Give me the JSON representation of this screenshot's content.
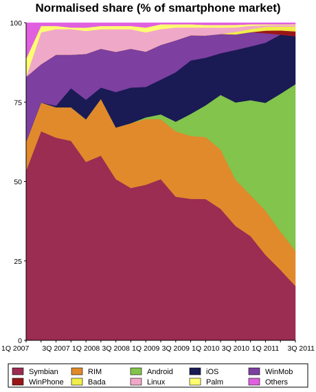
{
  "chart_data": {
    "type": "area",
    "stacked": true,
    "title": "Normalised share (% of smartphone market)",
    "xlabel": "",
    "ylabel": "",
    "ylim": [
      0,
      100
    ],
    "y_ticks": [
      "0",
      "25",
      "50",
      "75",
      "100"
    ],
    "x_tick_labels": [
      "1Q 2007",
      "3Q 2007",
      "1Q 2008",
      "3Q 2008",
      "1Q 2009",
      "3Q 2009",
      "1Q 2010",
      "3Q 2010",
      "1Q 2011",
      "3Q 2011"
    ],
    "grid": false,
    "legend_position": "bottom",
    "x": [
      "1Q 2007",
      "2Q 2007",
      "3Q 2007",
      "4Q 2007",
      "1Q 2008",
      "2Q 2008",
      "3Q 2008",
      "4Q 2008",
      "1Q 2009",
      "2Q 2009",
      "3Q 2009",
      "4Q 2009",
      "1Q 2010",
      "2Q 2010",
      "3Q 2010",
      "4Q 2010",
      "1Q 2011",
      "2Q 2011",
      "3Q 2011"
    ],
    "series": [
      {
        "name": "Symbian",
        "color": "#9b2c52",
        "values": [
          47,
          65.5,
          63.5,
          62.5,
          54.5,
          57,
          50,
          47,
          48.5,
          51,
          45,
          45,
          44.5,
          41,
          37,
          33,
          27,
          22,
          17
        ]
      },
      {
        "name": "RIM",
        "color": "#e08a2c",
        "values": [
          8,
          9,
          9.5,
          10.5,
          13,
          17.5,
          16,
          20,
          20.5,
          19,
          20.5,
          20,
          19.5,
          18.5,
          15,
          13,
          14,
          12,
          11
        ]
      },
      {
        "name": "Android",
        "color": "#82c44c",
        "values": [
          0,
          0,
          0,
          0,
          0,
          0,
          0,
          0,
          0.5,
          1.5,
          3,
          7,
          10,
          17,
          25,
          30,
          34,
          43,
          52
        ]
      },
      {
        "name": "iOS",
        "color": "#1a1a55",
        "values": [
          0,
          0,
          0.5,
          6,
          6,
          3.5,
          11,
          11,
          9.5,
          11,
          15.5,
          17,
          15,
          13,
          17,
          17,
          19,
          18.5,
          15
        ]
      },
      {
        "name": "WinMob",
        "color": "#7d3fa0",
        "values": [
          18,
          12,
          16,
          10.5,
          14,
          12,
          12.5,
          12,
          11,
          11,
          10,
          8,
          7,
          6,
          5,
          4.5,
          3,
          0,
          0
        ]
      },
      {
        "name": "WinPhone",
        "color": "#9a1616",
        "values": [
          0,
          0,
          0,
          0,
          0,
          0,
          0,
          0,
          0,
          0,
          0,
          0,
          0,
          0,
          0,
          0,
          0.8,
          1.3,
          1.5
        ]
      },
      {
        "name": "Bada",
        "color": "#f0ee4a",
        "values": [
          0,
          0,
          0,
          0,
          0,
          0,
          0,
          0,
          0,
          0,
          0,
          0,
          0,
          0,
          0.8,
          1,
          1.2,
          1.2,
          1.5
        ]
      },
      {
        "name": "Linux",
        "color": "#f0a8c8",
        "values": [
          0,
          10,
          8,
          8,
          7,
          6,
          7,
          6,
          6,
          5,
          4,
          2.5,
          2.5,
          2,
          1.5,
          1,
          0.5,
          0.5,
          0.5
        ]
      },
      {
        "name": "Palm",
        "color": "#ffff70",
        "values": [
          5,
          2,
          1,
          0.5,
          1,
          1,
          1,
          1,
          1.5,
          1.5,
          1,
          1,
          0.8,
          0.8,
          0.8,
          0.5,
          0.3,
          0.2,
          0.2
        ]
      },
      {
        "name": "Others",
        "color": "#e060e0",
        "values": [
          10,
          1,
          1,
          1.5,
          1.5,
          1,
          1,
          1,
          1.5,
          0.5,
          0.5,
          0.5,
          0.7,
          0.7,
          0.7,
          0.5,
          0.5,
          0.5,
          0.5
        ]
      }
    ],
    "legend_order": [
      "Symbian",
      "RIM",
      "Android",
      "iOS",
      "WinMob",
      "WinPhone",
      "Bada",
      "Linux",
      "Palm",
      "Others"
    ]
  }
}
